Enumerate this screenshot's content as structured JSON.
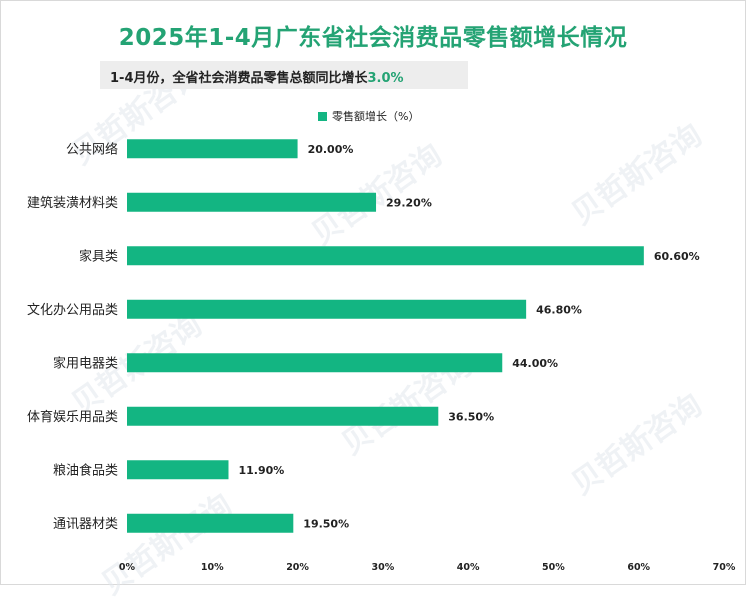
{
  "title": "2025年1-4月广东省社会消费品零售额增长情况",
  "subtitle": {
    "text": "1-4月份，全省社会消费品零售总额同比增长",
    "highlight": "3.0%"
  },
  "watermark": "贝哲斯咨询",
  "colors": {
    "bar": "#13b582",
    "title": "#24a374"
  },
  "chart_data": {
    "type": "bar",
    "orientation": "horizontal",
    "legend": "零售额增长（%）",
    "legend_position": "top",
    "categories": [
      "公共网络",
      "建筑装潢材料类",
      "家具类",
      "文化办公用品类",
      "家用电器类",
      "体育娱乐用品类",
      "粮油食品类",
      "通讯器材类"
    ],
    "values": [
      20.0,
      29.2,
      60.6,
      46.8,
      44.0,
      36.5,
      11.9,
      19.5
    ],
    "value_labels": [
      "20.00%",
      "29.20%",
      "60.60%",
      "46.80%",
      "44.00%",
      "36.50%",
      "11.90%",
      "19.50%"
    ],
    "xlim": [
      0,
      70
    ],
    "xticks": [
      "0%",
      "10%",
      "20%",
      "30%",
      "40%",
      "50%",
      "60%",
      "70%"
    ],
    "grid": false
  }
}
